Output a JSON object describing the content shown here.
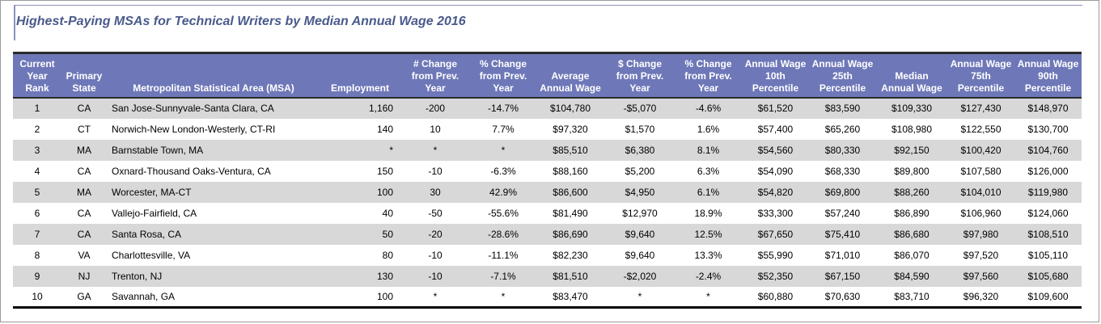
{
  "title": "Highest-Paying MSAs for Technical Writers by Median Annual Wage 2016",
  "chart_data": {
    "type": "table",
    "title": "Highest-Paying MSAs for Technical Writers by Median Annual Wage 2016",
    "columns": [
      "Current\nYear\nRank",
      "Primary\nState",
      "Metropolitan Statistical Area (MSA)",
      "Employment",
      "# Change\nfrom Prev.\nYear",
      "% Change\nfrom Prev.\nYear",
      "Average\nAnnual Wage",
      "$ Change\nfrom Prev.\nYear",
      "% Change\nfrom Prev.\nYear",
      "Annual Wage\n10th\nPercentile",
      "Annual Wage\n25th\nPercentile",
      "Median\nAnnual Wage",
      "Annual Wage\n75th\nPercentile",
      "Annual Wage\n90th\nPercentile"
    ],
    "rows": [
      [
        "1",
        "CA",
        "San Jose-Sunnyvale-Santa Clara, CA",
        "1,160",
        "-200",
        "-14.7%",
        "$104,780",
        "-$5,070",
        "-4.6%",
        "$61,520",
        "$83,590",
        "$109,330",
        "$127,430",
        "$148,970"
      ],
      [
        "2",
        "CT",
        "Norwich-New London-Westerly, CT-RI",
        "140",
        "10",
        "7.7%",
        "$97,320",
        "$1,570",
        "1.6%",
        "$57,400",
        "$65,260",
        "$108,980",
        "$122,550",
        "$130,700"
      ],
      [
        "3",
        "MA",
        "Barnstable Town, MA",
        "*",
        "*",
        "*",
        "$85,510",
        "$6,380",
        "8.1%",
        "$54,560",
        "$80,330",
        "$92,150",
        "$100,420",
        "$104,760"
      ],
      [
        "4",
        "CA",
        "Oxnard-Thousand Oaks-Ventura, CA",
        "150",
        "-10",
        "-6.3%",
        "$88,160",
        "$5,200",
        "6.3%",
        "$54,090",
        "$68,330",
        "$89,800",
        "$107,580",
        "$126,000"
      ],
      [
        "5",
        "MA",
        "Worcester, MA-CT",
        "100",
        "30",
        "42.9%",
        "$86,600",
        "$4,950",
        "6.1%",
        "$54,820",
        "$69,800",
        "$88,260",
        "$104,010",
        "$119,980"
      ],
      [
        "6",
        "CA",
        "Vallejo-Fairfield, CA",
        "40",
        "-50",
        "-55.6%",
        "$81,490",
        "$12,970",
        "18.9%",
        "$33,300",
        "$57,240",
        "$86,890",
        "$106,960",
        "$124,060"
      ],
      [
        "7",
        "CA",
        "Santa Rosa, CA",
        "50",
        "-20",
        "-28.6%",
        "$86,690",
        "$9,640",
        "12.5%",
        "$67,650",
        "$75,410",
        "$86,680",
        "$97,980",
        "$108,510"
      ],
      [
        "8",
        "VA",
        "Charlottesville, VA",
        "80",
        "-10",
        "-11.1%",
        "$82,230",
        "$9,640",
        "13.3%",
        "$55,990",
        "$71,010",
        "$86,070",
        "$97,520",
        "$105,110"
      ],
      [
        "9",
        "NJ",
        "Trenton, NJ",
        "130",
        "-10",
        "-7.1%",
        "$81,510",
        "-$2,020",
        "-2.4%",
        "$52,350",
        "$67,150",
        "$84,590",
        "$97,560",
        "$105,680"
      ],
      [
        "10",
        "GA",
        "Savannah, GA",
        "100",
        "*",
        "*",
        "$83,470",
        "*",
        "*",
        "$60,880",
        "$70,630",
        "$83,710",
        "$96,320",
        "$109,600"
      ]
    ]
  },
  "colors": {
    "header_bg": "#6e78b8",
    "header_text": "#ffffff",
    "title_text": "#4a5a8c",
    "row_alt_bg": "#d8d8d8",
    "row_bg": "#ffffff"
  }
}
